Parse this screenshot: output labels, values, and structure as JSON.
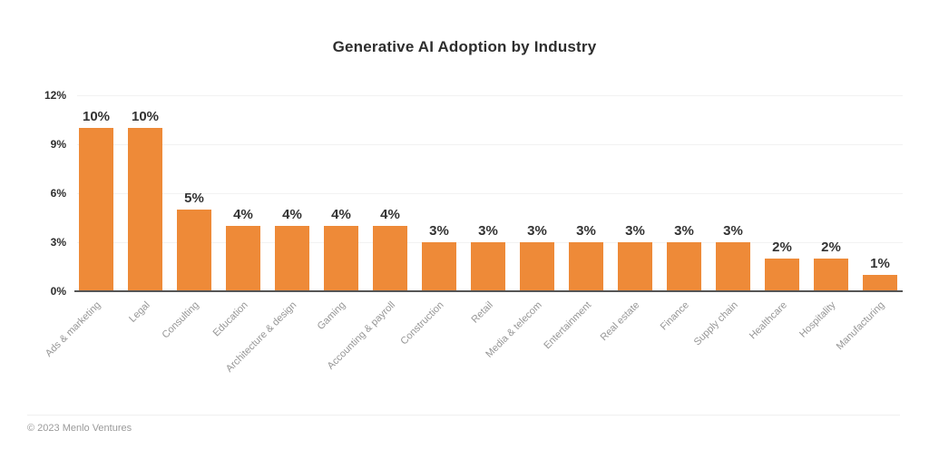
{
  "title": "Generative AI Adoption by Industry",
  "footer": {
    "copyright": "© 2023 Menlo Ventures"
  },
  "colors": {
    "background": "#ffffff",
    "bar": "#ee8a38",
    "title_text": "#2e2e2e",
    "value_label": "#333333",
    "axis_tick_label": "#2e2e2e",
    "x_label": "#969696",
    "gridline": "#f2f2f2",
    "axis_line": "#565656",
    "divider": "#efefef",
    "footer_text": "#9a9a9a"
  },
  "chart_data": {
    "type": "bar",
    "title": "Generative AI Adoption by Industry",
    "categories": [
      "Ads & marketing",
      "Legal",
      "Consulting",
      "Education",
      "Architecture & design",
      "Gaming",
      "Accounting & payroll",
      "Construction",
      "Retail",
      "Media & telecom",
      "Entertainment",
      "Real estate",
      "Finance",
      "Supply chain",
      "Healthcare",
      "Hospitality",
      "Manufacturing"
    ],
    "values": [
      10,
      10,
      5,
      4,
      4,
      4,
      4,
      3,
      3,
      3,
      3,
      3,
      3,
      3,
      2,
      2,
      1
    ],
    "value_labels": [
      "10%",
      "10%",
      "5%",
      "4%",
      "4%",
      "4%",
      "4%",
      "3%",
      "3%",
      "3%",
      "3%",
      "3%",
      "3%",
      "3%",
      "2%",
      "2%",
      "1%"
    ],
    "unit": "%",
    "xlabel": "",
    "ylabel": "",
    "ylim": [
      0,
      12
    ],
    "ytick_values": [
      0,
      3,
      6,
      9,
      12
    ],
    "ytick_labels": [
      "0%",
      "3%",
      "6%",
      "9%",
      "12%"
    ],
    "grid": "horizontal-only",
    "legend": "none",
    "x_label_rotation_deg": -45,
    "bar_color": "#ee8a38"
  }
}
